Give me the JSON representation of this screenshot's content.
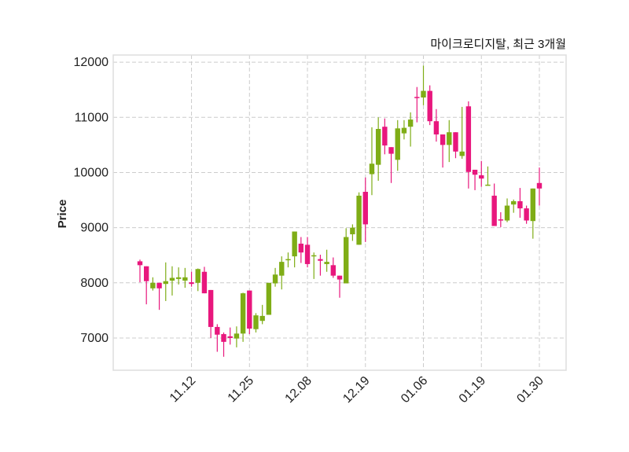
{
  "chart_data": {
    "type": "candlestick",
    "title": "마이크로디지탈, 최근 3개월",
    "xlabel": "",
    "ylabel": "Price",
    "ylim": [
      6415,
      12130
    ],
    "yticks": [
      7000,
      8000,
      9000,
      10000,
      11000,
      12000
    ],
    "xtick_labels": [
      {
        "index": 8,
        "label": "11.12"
      },
      {
        "index": 17,
        "label": "11.25"
      },
      {
        "index": 26,
        "label": "12.08"
      },
      {
        "index": 35,
        "label": "12.19"
      },
      {
        "index": 44,
        "label": "01.06"
      },
      {
        "index": 53,
        "label": "01.19"
      },
      {
        "index": 62,
        "label": "01.30"
      }
    ],
    "grid": true,
    "colors": {
      "up": "#7fad16",
      "down": "#e8177d",
      "grid": "#cccccc",
      "frame": "#dddddd"
    },
    "ohlc": [
      [
        8390,
        8420,
        8010,
        8320
      ],
      [
        8300,
        8300,
        7610,
        8030
      ],
      [
        7900,
        8100,
        7860,
        8000
      ],
      [
        8000,
        8000,
        7510,
        7900
      ],
      [
        7980,
        8370,
        7670,
        8030
      ],
      [
        8040,
        8300,
        7770,
        8090
      ],
      [
        8070,
        8280,
        7970,
        8100
      ],
      [
        8040,
        8270,
        7910,
        8100
      ],
      [
        8010,
        8200,
        7930,
        7980
      ],
      [
        8000,
        8260,
        7850,
        8250
      ],
      [
        8200,
        8290,
        7810,
        7810
      ],
      [
        7870,
        7870,
        7000,
        7200
      ],
      [
        7200,
        7250,
        6750,
        7060
      ],
      [
        7070,
        7100,
        6660,
        6930
      ],
      [
        7030,
        7190,
        6880,
        7000
      ],
      [
        6990,
        7210,
        6830,
        7080
      ],
      [
        7080,
        7820,
        6930,
        7810
      ],
      [
        7860,
        7860,
        7070,
        7170
      ],
      [
        7160,
        7450,
        7100,
        7410
      ],
      [
        7310,
        7600,
        7250,
        7400
      ],
      [
        7420,
        8000,
        7420,
        8000
      ],
      [
        7990,
        8270,
        7930,
        8150
      ],
      [
        8130,
        8480,
        7880,
        8380
      ],
      [
        8410,
        8550,
        8280,
        8430
      ],
      [
        8480,
        8930,
        8280,
        8930
      ],
      [
        8710,
        8830,
        8360,
        8550
      ],
      [
        8690,
        8830,
        8280,
        8340
      ],
      [
        8480,
        8550,
        8070,
        8500
      ],
      [
        8430,
        8510,
        8130,
        8400
      ],
      [
        8340,
        8600,
        8200,
        8380
      ],
      [
        8320,
        8460,
        8090,
        8130
      ],
      [
        8130,
        8130,
        7730,
        8060
      ],
      [
        7990,
        8990,
        7990,
        8830
      ],
      [
        8880,
        9060,
        8760,
        9000
      ],
      [
        8690,
        9640,
        8690,
        9580
      ],
      [
        9650,
        9910,
        8740,
        9060
      ],
      [
        9970,
        10820,
        9590,
        10160
      ],
      [
        10140,
        11000,
        9850,
        10790
      ],
      [
        10830,
        10980,
        10330,
        10490
      ],
      [
        10460,
        10460,
        9810,
        10340
      ],
      [
        10230,
        10950,
        10030,
        10800
      ],
      [
        10710,
        10950,
        10600,
        10810
      ],
      [
        10830,
        11090,
        10470,
        10960
      ],
      [
        11370,
        11550,
        10910,
        11350
      ],
      [
        11360,
        11940,
        11220,
        11480
      ],
      [
        11480,
        11580,
        10860,
        10930
      ],
      [
        10930,
        11150,
        10560,
        10690
      ],
      [
        10690,
        10690,
        10090,
        10500
      ],
      [
        10500,
        10950,
        10190,
        10730
      ],
      [
        10730,
        10730,
        10260,
        10380
      ],
      [
        10300,
        11190,
        10250,
        10380
      ],
      [
        11200,
        11290,
        9710,
        10010
      ],
      [
        10050,
        10050,
        9680,
        9960
      ],
      [
        9950,
        10210,
        9740,
        9890
      ],
      [
        9770,
        10110,
        9770,
        9780
      ],
      [
        9580,
        9800,
        9030,
        9030
      ],
      [
        9150,
        9280,
        9010,
        9140
      ],
      [
        9130,
        9530,
        9100,
        9400
      ],
      [
        9420,
        9510,
        9270,
        9480
      ],
      [
        9480,
        9720,
        9180,
        9350
      ],
      [
        9350,
        9400,
        9070,
        9130
      ],
      [
        9120,
        9710,
        8800,
        9710
      ],
      [
        9810,
        10090,
        9400,
        9710
      ]
    ]
  }
}
